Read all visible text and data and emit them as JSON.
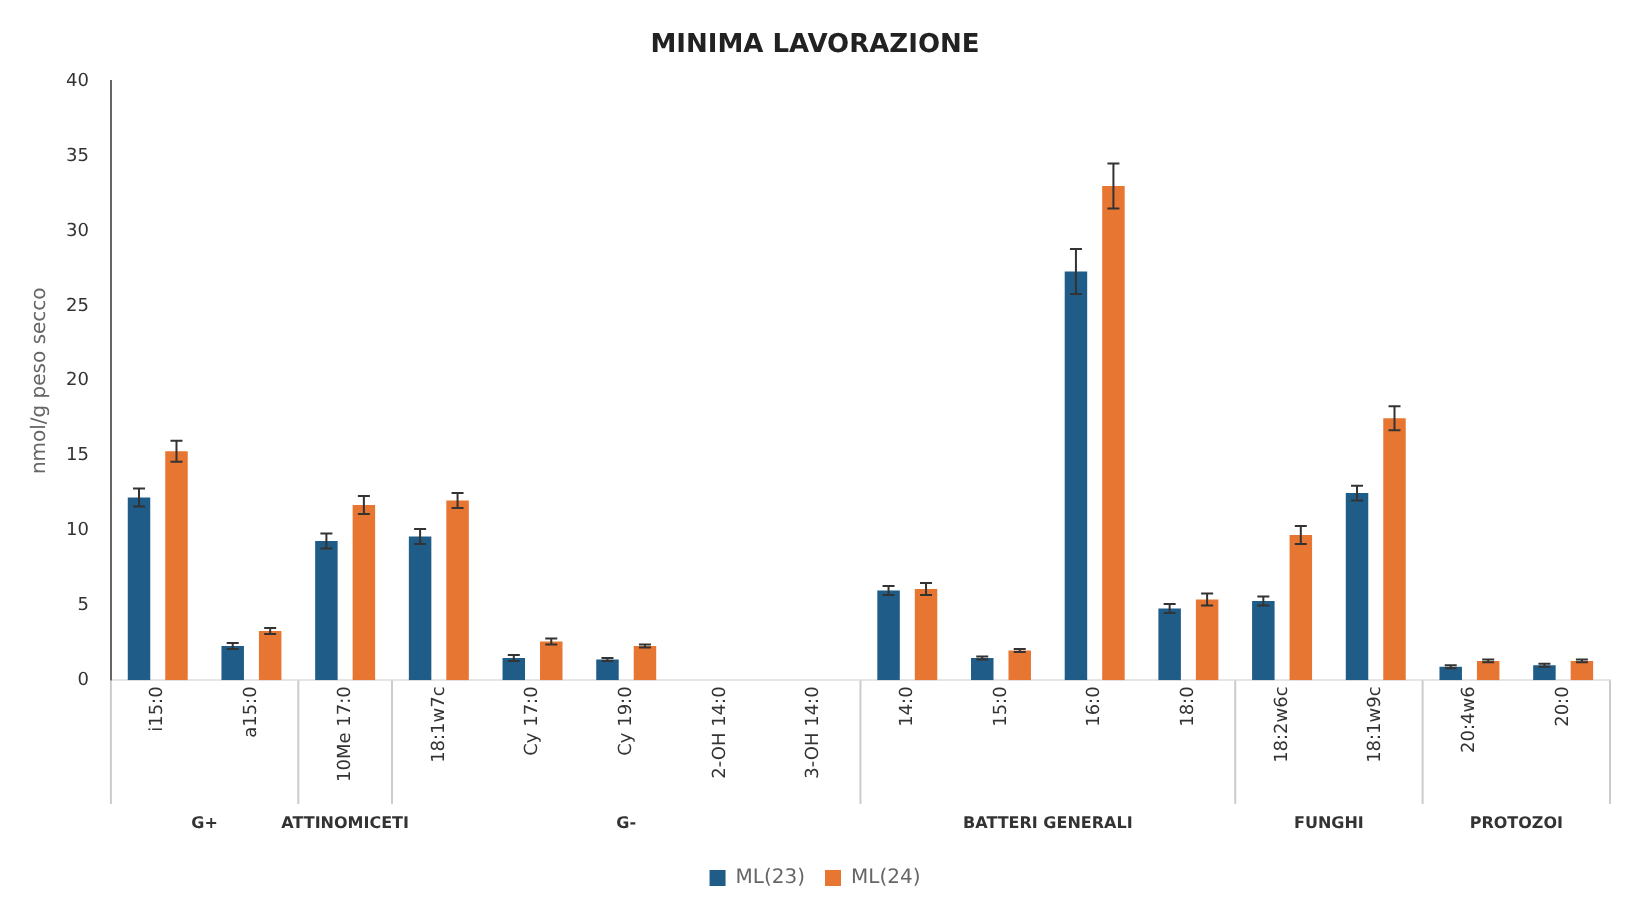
{
  "chart_data": {
    "type": "bar",
    "title": "MINIMA LAVORAZIONE",
    "ylabel": "nmol/g peso secco",
    "categories": [
      "i15:0",
      "a15:0",
      "10Me 17:0",
      "18:1w7c",
      "Cy 17:0",
      "Cy 19:0",
      "2-OH 14:0",
      "3-OH 14:0",
      "14:0",
      "15:0",
      "16:0",
      "18:0",
      "18:2w6c",
      "18:1w9c",
      "20:4w6",
      "20:0"
    ],
    "series": [
      {
        "name": "ML(23)",
        "color": "#1f5c87",
        "values": [
          12.2,
          2.3,
          9.3,
          9.6,
          1.5,
          1.4,
          0,
          0,
          6.0,
          1.5,
          27.3,
          4.8,
          5.3,
          12.5,
          0.9,
          1.0
        ],
        "errors": [
          0.6,
          0.2,
          0.5,
          0.5,
          0.2,
          0.1,
          null,
          null,
          0.3,
          0.1,
          1.5,
          0.3,
          0.3,
          0.5,
          0.1,
          0.1
        ]
      },
      {
        "name": "ML(24)",
        "color": "#e87633",
        "values": [
          15.3,
          3.3,
          11.7,
          12.0,
          2.6,
          2.3,
          0,
          0,
          6.1,
          2.0,
          33.0,
          5.4,
          9.7,
          17.5,
          1.3,
          1.3
        ],
        "errors": [
          0.7,
          0.2,
          0.6,
          0.5,
          0.2,
          0.1,
          null,
          null,
          0.4,
          0.1,
          1.5,
          0.4,
          0.6,
          0.8,
          0.1,
          0.1
        ]
      }
    ],
    "ylim": [
      0,
      40
    ],
    "yticks": [
      0,
      5,
      10,
      15,
      20,
      25,
      30,
      35,
      40
    ],
    "grid": false,
    "legend": "bottom",
    "annotations": [
      "G+",
      "ATTINOMICETI",
      "G-",
      "BATTERI GENERALI",
      "FUNGHI",
      "PROTOZOI"
    ]
  }
}
